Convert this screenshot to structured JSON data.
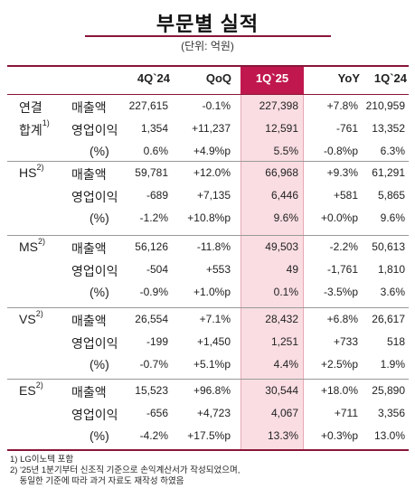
{
  "title": "부문별 실적",
  "unit": "(단위: 억원)",
  "headers": [
    "4Q`24",
    "QoQ",
    "1Q`25",
    "YoY",
    "1Q`24"
  ],
  "sections": [
    {
      "segment": "연결",
      "segment_line2": "합계",
      "segment_sup": "1)",
      "rows": [
        {
          "metric": "매출액",
          "values": [
            "227,615",
            "-0.1%",
            "227,398",
            "+7.8%",
            "210,959"
          ]
        },
        {
          "metric": "영업이익",
          "values": [
            "1,354",
            "+11,237",
            "12,591",
            "-761",
            "13,352"
          ]
        },
        {
          "metric": "(%)",
          "values": [
            "0.6%",
            "+4.9%p",
            "5.5%",
            "-0.8%p",
            "6.3%"
          ]
        }
      ]
    },
    {
      "segment": "HS",
      "segment_sup": "2)",
      "rows": [
        {
          "metric": "매출액",
          "values": [
            "59,781",
            "+12.0%",
            "66,968",
            "+9.3%",
            "61,291"
          ]
        },
        {
          "metric": "영업이익",
          "values": [
            "-689",
            "+7,135",
            "6,446",
            "+581",
            "5,865"
          ]
        },
        {
          "metric": "(%)",
          "values": [
            "-1.2%",
            "+10.8%p",
            "9.6%",
            "+0.0%p",
            "9.6%"
          ]
        }
      ]
    },
    {
      "segment": "MS",
      "segment_sup": "2)",
      "rows": [
        {
          "metric": "매출액",
          "values": [
            "56,126",
            "-11.8%",
            "49,503",
            "-2.2%",
            "50,613"
          ]
        },
        {
          "metric": "영업이익",
          "values": [
            "-504",
            "+553",
            "49",
            "-1,761",
            "1,810"
          ]
        },
        {
          "metric": "(%)",
          "values": [
            "-0.9%",
            "+1.0%p",
            "0.1%",
            "-3.5%p",
            "3.6%"
          ]
        }
      ]
    },
    {
      "segment": "VS",
      "segment_sup": "2)",
      "rows": [
        {
          "metric": "매출액",
          "values": [
            "26,554",
            "+7.1%",
            "28,432",
            "+6.8%",
            "26,617"
          ]
        },
        {
          "metric": "영업이익",
          "values": [
            "-199",
            "+1,450",
            "1,251",
            "+733",
            "518"
          ]
        },
        {
          "metric": "(%)",
          "values": [
            "-0.7%",
            "+5.1%p",
            "4.4%",
            "+2.5%p",
            "1.9%"
          ]
        }
      ]
    },
    {
      "segment": "ES",
      "segment_sup": "2)",
      "rows": [
        {
          "metric": "매출액",
          "values": [
            "15,523",
            "+96.8%",
            "30,544",
            "+18.0%",
            "25,890"
          ]
        },
        {
          "metric": "영업이익",
          "values": [
            "-656",
            "+4,723",
            "4,067",
            "+711",
            "3,356"
          ]
        },
        {
          "metric": "(%)",
          "values": [
            "-4.2%",
            "+17.5%p",
            "13.3%",
            "+0.3%p",
            "13.0%"
          ]
        }
      ]
    }
  ],
  "footnotes": [
    "1) LG이노텍 포함",
    "2) '25년 1분기부터 신조직 기준으로 손익계산서가 작성되었으며,",
    "    동일한 기준에 따라 과거 자료도 재작성 하였음"
  ]
}
